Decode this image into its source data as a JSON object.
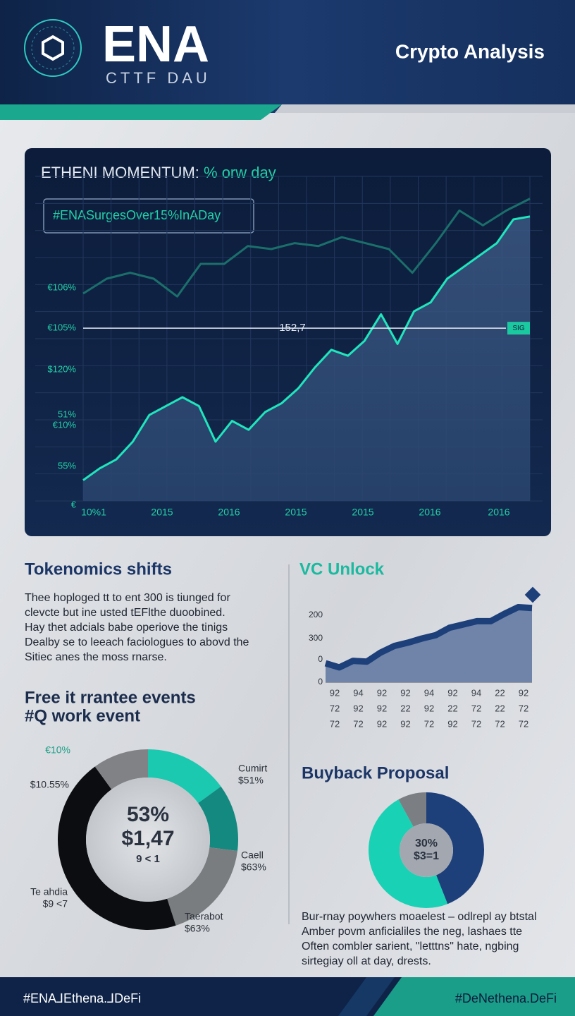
{
  "header": {
    "logo": "ENA",
    "tagline": "CTTF DAU",
    "label": "Crypto Analysis"
  },
  "chart_data": [
    {
      "type": "line",
      "title": "ETHENI MOMENTUM:",
      "title_highlight": "% orw day",
      "hashtag": "#ENASurgesOver15%InADay",
      "y_labels": [
        "€106%",
        "€105%",
        "$120%",
        "51%",
        "€10%",
        "55%",
        "€"
      ],
      "x_labels": [
        "10%1",
        "2015",
        "2016",
        "2015",
        "2015",
        "2016",
        "2016"
      ],
      "ylim": [
        0,
        105
      ],
      "grid": true,
      "series": [
        {
          "color": "#1fe6bd",
          "values": [
            7,
            11,
            14,
            20,
            29,
            32,
            35,
            32,
            20,
            27,
            24,
            30,
            33,
            38,
            45,
            51,
            49,
            54,
            63,
            53,
            64,
            67,
            75,
            79,
            83,
            87,
            95,
            96
          ]
        },
        {
          "color": "#1b6f6b",
          "values": [
            70,
            75,
            77,
            75,
            69,
            80,
            80,
            86,
            85,
            87,
            86,
            89,
            87,
            85,
            77,
            87,
            98,
            93,
            98,
            102
          ]
        }
      ],
      "reference": {
        "value": 58.3,
        "label": "152,7",
        "tag": "SIG"
      }
    },
    {
      "type": "area",
      "title": "VC Unlock",
      "y_labels": [
        "200",
        "300",
        "0",
        "0"
      ],
      "x_labels": [
        [
          "92",
          "94",
          "92",
          "92",
          "94",
          "92",
          "94",
          "22",
          "92"
        ],
        [
          "72",
          "92",
          "92",
          "22",
          "92",
          "22",
          "72",
          "22",
          "72"
        ],
        [
          "72",
          "72",
          "92",
          "92",
          "72",
          "92",
          "72",
          "72",
          "72"
        ]
      ],
      "ylim": [
        0,
        100
      ],
      "color": "#1d3f7a",
      "values": [
        23,
        18,
        26,
        25,
        36,
        44,
        48,
        53,
        57,
        66,
        70,
        74,
        74,
        83,
        91,
        90
      ]
    },
    {
      "type": "pie",
      "title": [
        "Free it rrantee events",
        "#Q work event"
      ],
      "center_text": [
        "53%",
        "$1,47",
        "9 < 1"
      ],
      "values": [
        15,
        12,
        18,
        45,
        10
      ],
      "colors": [
        "#1bc9b0",
        "#14897f",
        "#7a7d80",
        "#0c0d10",
        "#808285"
      ],
      "callouts": [
        [
          "€10%"
        ],
        [
          "$10.55%"
        ],
        [
          "Te ahdia",
          "$9 <7"
        ],
        [
          "Cumirt",
          "$51%"
        ],
        [
          "Caell",
          "$63%"
        ],
        [
          "Taerabot",
          "$63%"
        ]
      ]
    },
    {
      "type": "pie",
      "title": [
        "Buyback Proposal"
      ],
      "center_text": [
        "30%",
        "$3=1"
      ],
      "values": [
        44,
        48,
        8
      ],
      "colors": [
        "#1d3f7a",
        "#19d1b4",
        "#7b7e82"
      ],
      "callouts": []
    }
  ],
  "tokenomics": {
    "title": "Tokenomics shifts",
    "lines": [
      "Thee hoploged tt to ent 300 is tiunged  for",
      "clevcte but ine usted tEFlthe duoobined.",
      "Hay thet adcials babe operiove the tinigs",
      "Dealby se to leeach faciologues to abovd the",
      "Sitiec anes the moss rnarse."
    ]
  },
  "buyback_text": [
    "Bur-rnay poywhers moaelest – odlrepl ay btstal",
    "Amber povm anficialiles the neg, lashaes tte",
    "Often combler sarient, \"letttns\" hate, ngbing",
    "sirtegiay oll at day, drests."
  ],
  "footer": {
    "left": "#ENA⅃Ethena.⅃DeFi",
    "right": "#DeNethena.DeFi"
  }
}
